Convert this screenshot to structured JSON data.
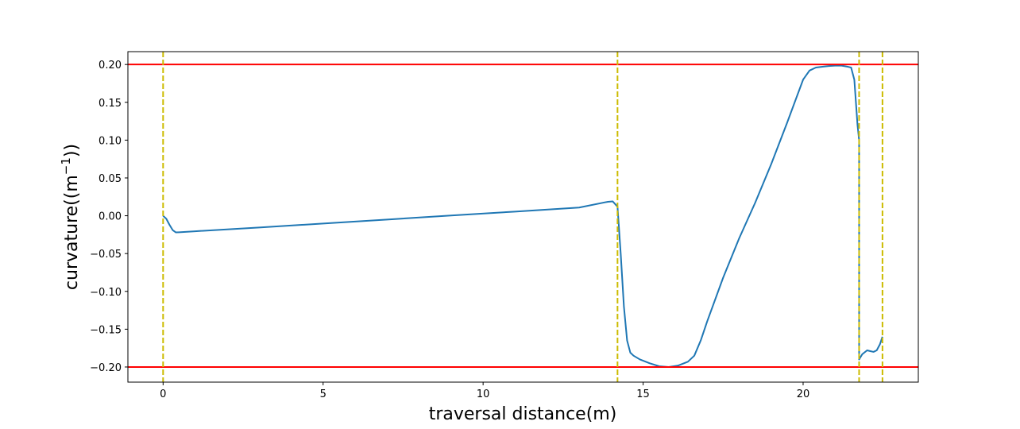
{
  "chart_data": {
    "type": "line",
    "title": "",
    "xlabel": "traversal distance(m)",
    "ylabel_prefix": "curvature((m",
    "ylabel_sup": "−1",
    "ylabel_suffix": "))",
    "xlim": [
      -1.1,
      23.6
    ],
    "ylim": [
      -0.22,
      0.217
    ],
    "x_ticks": [
      0,
      5,
      10,
      15,
      20
    ],
    "x_tick_labels": [
      "0",
      "5",
      "10",
      "15",
      "20"
    ],
    "y_ticks": [
      0.2,
      0.15,
      0.1,
      0.05,
      0.0,
      -0.05,
      -0.1,
      -0.15,
      -0.2
    ],
    "y_tick_labels": [
      "0.20",
      "0.15",
      "0.10",
      "0.05",
      "0.00",
      "−0.05",
      "−0.10",
      "−0.15",
      "−0.20"
    ],
    "grid": false,
    "colors": {
      "series": "#1f77b4",
      "limit": "#ff0000",
      "boundary": "#ccbb00"
    },
    "limit_lines": [
      0.2,
      -0.2
    ],
    "boundary_lines": [
      0,
      14.2,
      21.75,
      22.48
    ],
    "series": [
      {
        "x": [
          0,
          0.1,
          0.2,
          0.3,
          0.4,
          0.5,
          1,
          3,
          5,
          7,
          9,
          11,
          13,
          13.9,
          14.05,
          14.2,
          14.3,
          14.4,
          14.5,
          14.6,
          14.7,
          14.9,
          15.2,
          15.5,
          15.8,
          16.1,
          16.4,
          16.6,
          16.8,
          17,
          17.5,
          18,
          18.5,
          19,
          19.5,
          20,
          20.2,
          20.4,
          20.6,
          20.8,
          21,
          21.2,
          21.4,
          21.5,
          21.6,
          21.7,
          21.75,
          21.75,
          21.85,
          22,
          22.1,
          22.2,
          22.3,
          22.4,
          22.48
        ],
        "y": [
          0.0,
          -0.004,
          -0.012,
          -0.019,
          -0.022,
          -0.0218,
          -0.0205,
          -0.0155,
          -0.0103,
          -0.005,
          0.0003,
          0.0055,
          0.0108,
          0.0185,
          0.019,
          0.012,
          -0.05,
          -0.12,
          -0.165,
          -0.181,
          -0.185,
          -0.19,
          -0.195,
          -0.199,
          -0.2,
          -0.198,
          -0.193,
          -0.185,
          -0.165,
          -0.14,
          -0.082,
          -0.03,
          0.017,
          0.068,
          0.123,
          0.18,
          0.192,
          0.196,
          0.197,
          0.198,
          0.1985,
          0.1985,
          0.197,
          0.196,
          0.18,
          0.12,
          0.1,
          -0.19,
          -0.183,
          -0.178,
          -0.179,
          -0.18,
          -0.178,
          -0.17,
          -0.16
        ]
      }
    ]
  }
}
